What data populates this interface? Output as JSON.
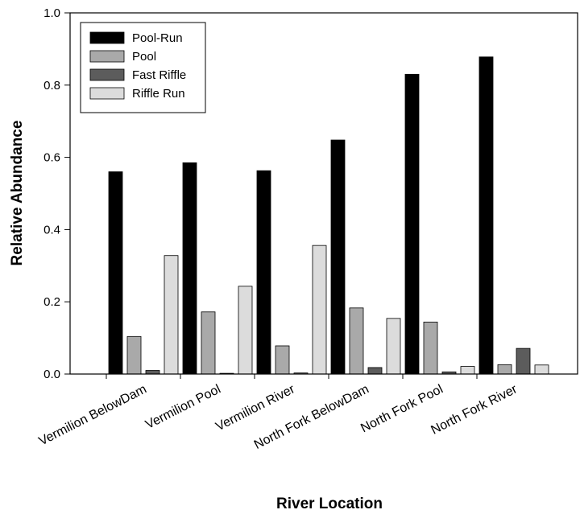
{
  "chart_data": {
    "type": "bar",
    "xlabel": "River Location",
    "ylabel": "Relative Abundance",
    "ylim": [
      0,
      1.0
    ],
    "yticks": [
      0.0,
      0.2,
      0.4,
      0.6,
      0.8,
      1.0
    ],
    "ytick_labels": [
      "0.0",
      "0.2",
      "0.4",
      "0.6",
      "0.8",
      "1.0"
    ],
    "grid": false,
    "legend_position": "top-left",
    "categories": [
      "Vermilion BelowDam",
      "Vermilion Pool",
      "Vermilion River",
      "North Fork BelowDam",
      "North Fork Pool",
      "North Fork River"
    ],
    "series": [
      {
        "name": "Pool-Run",
        "color": "#000000",
        "values": [
          0.56,
          0.585,
          0.563,
          0.648,
          0.83,
          0.878
        ]
      },
      {
        "name": "Pool",
        "color": "#a9a9a9",
        "values": [
          0.104,
          0.172,
          0.078,
          0.183,
          0.144,
          0.026
        ]
      },
      {
        "name": "Fast Riffle",
        "color": "#5c5c5c",
        "values": [
          0.01,
          0.002,
          0.003,
          0.018,
          0.006,
          0.071
        ]
      },
      {
        "name": "Riffle Run",
        "color": "#dcdcdc",
        "values": [
          0.328,
          0.243,
          0.356,
          0.154,
          0.021,
          0.025
        ]
      }
    ]
  }
}
